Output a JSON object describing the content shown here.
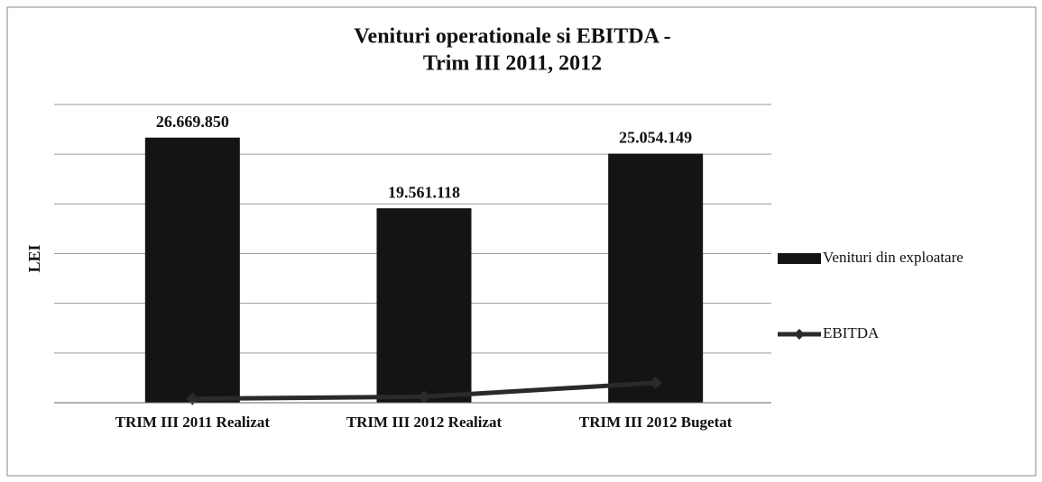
{
  "chart_data": {
    "type": "bar",
    "title": [
      "Venituri operationale si EBITDA -",
      "Trim III 2011, 2012"
    ],
    "y_label": "LEI",
    "categories": [
      "TRIM III 2011 Realizat",
      "TRIM III 2012 Realizat",
      "TRIM III 2012 Bugetat"
    ],
    "series": [
      {
        "name": "Venituri din exploatare",
        "type": "bar",
        "color": "#141414",
        "values": [
          26669850,
          19561118,
          25054149
        ],
        "value_labels": [
          "26.669.850",
          "19.561.118",
          "25.054.149"
        ]
      },
      {
        "name": "EBITDA",
        "type": "line",
        "color": "#2a2a2a",
        "values": [
          400000,
          600000,
          2000000
        ]
      }
    ],
    "ylim": [
      0,
      30000000
    ],
    "yticks": [
      0,
      5000000,
      10000000,
      15000000,
      20000000,
      25000000,
      30000000
    ],
    "grid": true,
    "legend": "right"
  }
}
